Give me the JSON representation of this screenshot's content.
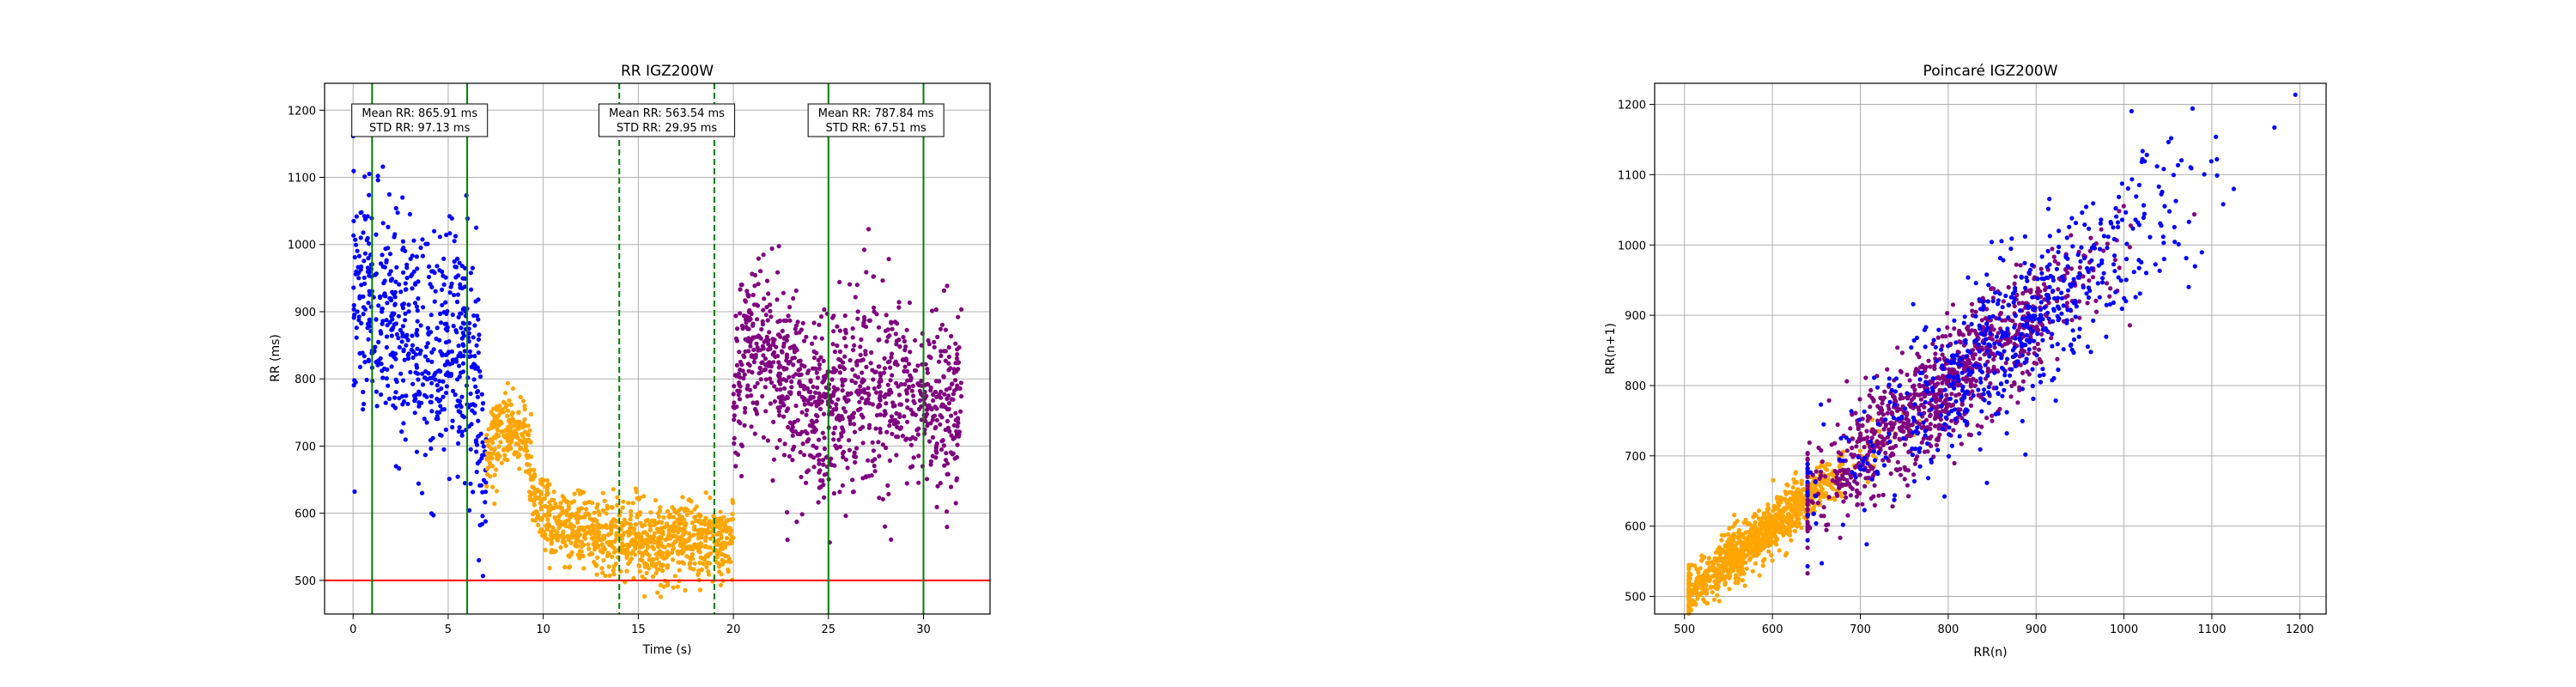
{
  "chart_data": [
    {
      "type": "scatter",
      "title": "RR IGZ200W",
      "xlabel": "Time (s)",
      "ylabel": "RR (ms)",
      "xlim": [
        -1.5,
        33.5
      ],
      "ylim": [
        450,
        1240
      ],
      "x_ticks": [
        0,
        5,
        10,
        15,
        20,
        25,
        30
      ],
      "y_ticks": [
        500,
        600,
        700,
        800,
        900,
        1000,
        1100,
        1200
      ],
      "grid": true,
      "threshold_line": {
        "y": 500,
        "color": "#ff0000"
      },
      "vertical_lines": [
        {
          "x": 1,
          "style": "solid",
          "color": "#008000"
        },
        {
          "x": 6,
          "style": "solid",
          "color": "#008000"
        },
        {
          "x": 14,
          "style": "dashed",
          "color": "#008000"
        },
        {
          "x": 19,
          "style": "dashed",
          "color": "#008000"
        },
        {
          "x": 25,
          "style": "solid",
          "color": "#008000"
        },
        {
          "x": 30,
          "style": "solid",
          "color": "#008000"
        }
      ],
      "annotations": [
        {
          "x": 3.5,
          "y": 1185,
          "lines": [
            "Mean RR: 865.91 ms",
            "STD RR: 97.13 ms"
          ]
        },
        {
          "x": 16.5,
          "y": 1185,
          "lines": [
            "Mean RR: 563.54 ms",
            "STD RR: 29.95 ms"
          ]
        },
        {
          "x": 27.5,
          "y": 1185,
          "lines": [
            "Mean RR: 787.84 ms",
            "STD RR: 67.51 ms"
          ]
        }
      ],
      "series": [
        {
          "color": "#0000ff",
          "x_range": [
            0,
            7
          ],
          "count": 620,
          "trend": [
            [
              0,
              930
            ],
            [
              2,
              880
            ],
            [
              4,
              840
            ],
            [
              5.5,
              860
            ],
            [
              6.3,
              820
            ],
            [
              7,
              660
            ]
          ],
          "spread": 85
        },
        {
          "color": "#ffa500",
          "x_range": [
            7,
            20
          ],
          "count": 1150,
          "trend": [
            [
              7,
              690
            ],
            [
              8,
              730
            ],
            [
              9,
              720
            ],
            [
              9.6,
              620
            ],
            [
              10.5,
              580
            ],
            [
              12,
              570
            ],
            [
              14,
              565
            ],
            [
              16,
              555
            ],
            [
              18,
              560
            ],
            [
              19.5,
              555
            ],
            [
              20,
              560
            ]
          ],
          "spread": 28
        },
        {
          "color": "#800080",
          "x_range": [
            20,
            32
          ],
          "count": 1050,
          "trend": [
            [
              20,
              790
            ],
            [
              21,
              860
            ],
            [
              22,
              830
            ],
            [
              23.5,
              760
            ],
            [
              25,
              760
            ],
            [
              27,
              780
            ],
            [
              29,
              790
            ],
            [
              30.5,
              760
            ],
            [
              32,
              760
            ]
          ],
          "spread": 68
        }
      ]
    },
    {
      "type": "scatter",
      "title": "Poincaré IGZ200W",
      "xlabel": "RR(n)",
      "ylabel": "RR(n+1)",
      "xlim": [
        466,
        1230
      ],
      "ylim": [
        475,
        1230
      ],
      "x_ticks": [
        500,
        600,
        700,
        800,
        900,
        1000,
        1100,
        1200
      ],
      "y_ticks": [
        500,
        600,
        700,
        800,
        900,
        1000,
        1100,
        1200
      ],
      "grid": true,
      "series": [
        {
          "color": "#ffa500",
          "center": [
            580,
            580
          ],
          "range": [
            505,
            800
          ],
          "count": 1100,
          "spread": 18
        },
        {
          "color": "#800080",
          "center": [
            790,
            790
          ],
          "range": [
            640,
            1080
          ],
          "count": 1000,
          "spread": 40
        },
        {
          "color": "#0000ff",
          "center": [
            880,
            880
          ],
          "range": [
            640,
            1195
          ],
          "count": 600,
          "spread": 55
        }
      ]
    }
  ]
}
